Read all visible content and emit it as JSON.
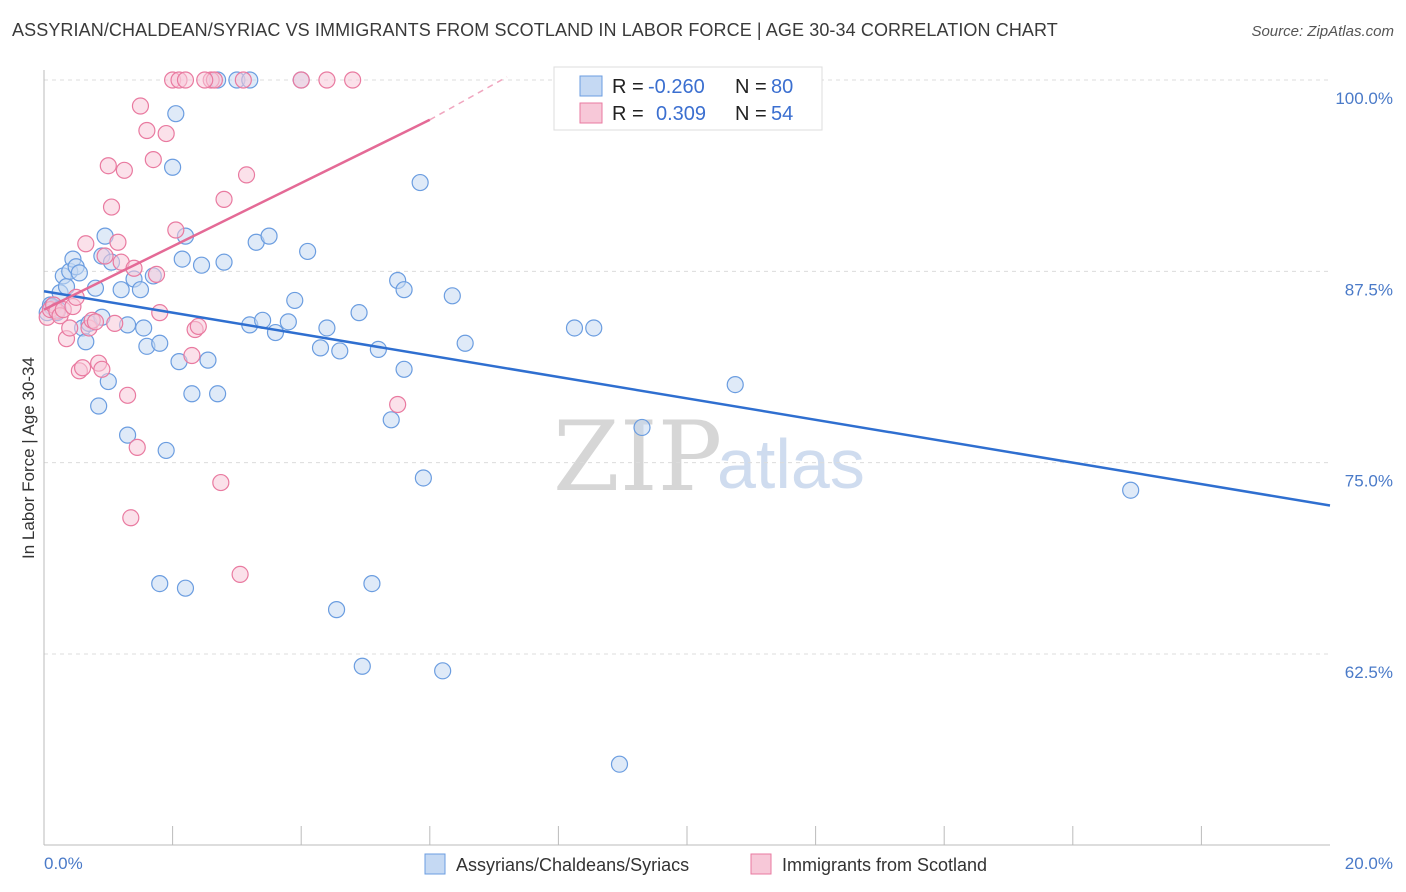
{
  "header": {
    "title": "ASSYRIAN/CHALDEAN/SYRIAC VS IMMIGRANTS FROM SCOTLAND IN LABOR FORCE | AGE 30-34 CORRELATION CHART",
    "source": "Source: ZipAtlas.com"
  },
  "watermark": {
    "zip": "ZIP",
    "atlas": "atlas"
  },
  "chart_data": {
    "type": "scatter",
    "xlim": [
      0,
      20
    ],
    "ylim": [
      50,
      100
    ],
    "y_ticks": [
      {
        "value": 100,
        "label": "100.0%"
      },
      {
        "value": 87.5,
        "label": "87.5%"
      },
      {
        "value": 75,
        "label": "75.0%"
      },
      {
        "value": 62.5,
        "label": "62.5%"
      }
    ],
    "x_ticks": [
      {
        "value": 0,
        "label": "0.0%"
      },
      {
        "value": 20,
        "label": "20.0%"
      }
    ],
    "x_minor_ticks": [
      2,
      4,
      6,
      8,
      10,
      12,
      14,
      16,
      18
    ],
    "ylabel": "In Labor Force | Age 30-34",
    "xlabel": "",
    "grid": true,
    "legend_stats": [
      {
        "r_label": "R =",
        "r_value": "-0.260",
        "n_label": "N =",
        "n_value": "80"
      },
      {
        "r_label": "R =",
        "r_value": "0.309",
        "n_label": "N =",
        "n_value": "54"
      }
    ],
    "series": [
      {
        "name": "Assyrians/Chaldeans/Syriacs",
        "color": "#6b9de0",
        "fill": "#c5d9f3",
        "trend": {
          "x0": 0,
          "y0": 86.2,
          "x1": 20,
          "y1": 72.2
        },
        "points": [
          [
            0.1,
            85.3
          ],
          [
            0.15,
            85.1
          ],
          [
            0.2,
            84.8
          ],
          [
            0.25,
            86.1
          ],
          [
            0.3,
            87.2
          ],
          [
            0.35,
            86.5
          ],
          [
            0.4,
            87.5
          ],
          [
            0.45,
            88.3
          ],
          [
            0.5,
            87.8
          ],
          [
            0.55,
            87.4
          ],
          [
            0.6,
            83.8
          ],
          [
            0.65,
            82.9
          ],
          [
            0.7,
            84.1
          ],
          [
            0.8,
            86.4
          ],
          [
            0.85,
            78.7
          ],
          [
            0.9,
            88.5
          ],
          [
            0.95,
            89.8
          ],
          [
            1.0,
            80.3
          ],
          [
            1.05,
            88.1
          ],
          [
            1.3,
            84.0
          ],
          [
            1.4,
            87.0
          ],
          [
            1.5,
            86.3
          ],
          [
            1.55,
            83.8
          ],
          [
            1.6,
            82.6
          ],
          [
            1.7,
            87.2
          ],
          [
            1.8,
            82.8
          ],
          [
            1.9,
            75.8
          ],
          [
            2.0,
            94.3
          ],
          [
            2.05,
            97.8
          ],
          [
            2.1,
            81.6
          ],
          [
            2.2,
            89.8
          ],
          [
            2.3,
            79.5
          ],
          [
            2.45,
            87.9
          ],
          [
            2.55,
            81.7
          ],
          [
            2.7,
            79.5
          ],
          [
            2.8,
            88.1
          ],
          [
            2.7,
            100.0
          ],
          [
            3.0,
            100.0
          ],
          [
            3.2,
            100.0
          ],
          [
            3.2,
            84.0
          ],
          [
            3.3,
            89.4
          ],
          [
            3.4,
            84.3
          ],
          [
            3.5,
            89.8
          ],
          [
            3.6,
            83.5
          ],
          [
            3.8,
            84.2
          ],
          [
            3.9,
            85.6
          ],
          [
            4.0,
            100.0
          ],
          [
            4.1,
            88.8
          ],
          [
            4.3,
            82.5
          ],
          [
            4.4,
            83.8
          ],
          [
            4.6,
            82.3
          ],
          [
            4.9,
            84.8
          ],
          [
            5.2,
            82.4
          ],
          [
            5.4,
            77.8
          ],
          [
            5.5,
            86.9
          ],
          [
            5.6,
            86.3
          ],
          [
            5.6,
            81.1
          ],
          [
            5.85,
            93.3
          ],
          [
            5.9,
            74.0
          ],
          [
            6.35,
            85.9
          ],
          [
            6.55,
            82.8
          ],
          [
            8.25,
            83.8
          ],
          [
            8.55,
            83.8
          ],
          [
            9.3,
            77.3
          ],
          [
            10.75,
            80.1
          ],
          [
            1.3,
            76.8
          ],
          [
            1.8,
            67.1
          ],
          [
            2.2,
            66.8
          ],
          [
            4.55,
            65.4
          ],
          [
            5.1,
            67.1
          ],
          [
            4.95,
            61.7
          ],
          [
            6.2,
            61.4
          ],
          [
            8.95,
            55.3
          ],
          [
            16.9,
            73.2
          ],
          [
            2.15,
            88.3
          ],
          [
            0.05,
            84.8
          ],
          [
            0.12,
            85.2
          ],
          [
            0.22,
            85.0
          ],
          [
            1.2,
            86.3
          ],
          [
            0.9,
            84.5
          ]
        ]
      },
      {
        "name": "Immigrants from Scotland",
        "color": "#e97aa0",
        "fill": "#f7c8d8",
        "trend": {
          "x0": 0,
          "y0": 85.0,
          "x1": 6.0,
          "y1": 97.4
        },
        "trend_dashed": {
          "x0": 6.0,
          "y0": 97.4,
          "x1": 7.2,
          "y1": 100.2
        },
        "points": [
          [
            0.05,
            84.5
          ],
          [
            0.1,
            85.0
          ],
          [
            0.15,
            85.3
          ],
          [
            0.2,
            84.9
          ],
          [
            0.25,
            84.6
          ],
          [
            0.3,
            85.0
          ],
          [
            0.35,
            83.1
          ],
          [
            0.4,
            83.8
          ],
          [
            0.45,
            85.2
          ],
          [
            0.5,
            85.8
          ],
          [
            0.55,
            81.0
          ],
          [
            0.6,
            81.2
          ],
          [
            0.65,
            89.3
          ],
          [
            0.7,
            83.8
          ],
          [
            0.75,
            84.3
          ],
          [
            0.8,
            84.2
          ],
          [
            0.85,
            81.5
          ],
          [
            0.9,
            81.1
          ],
          [
            0.95,
            88.5
          ],
          [
            1.0,
            94.4
          ],
          [
            1.05,
            91.7
          ],
          [
            1.1,
            84.1
          ],
          [
            1.15,
            89.4
          ],
          [
            1.2,
            88.1
          ],
          [
            1.25,
            94.1
          ],
          [
            1.3,
            79.4
          ],
          [
            1.35,
            71.4
          ],
          [
            1.4,
            87.7
          ],
          [
            1.45,
            76.0
          ],
          [
            1.5,
            98.3
          ],
          [
            1.6,
            96.7
          ],
          [
            1.7,
            94.8
          ],
          [
            1.75,
            87.3
          ],
          [
            1.8,
            84.8
          ],
          [
            1.9,
            96.5
          ],
          [
            2.0,
            100.0
          ],
          [
            2.05,
            90.2
          ],
          [
            2.1,
            100.0
          ],
          [
            2.2,
            100.0
          ],
          [
            2.3,
            82.0
          ],
          [
            2.35,
            83.7
          ],
          [
            2.4,
            83.9
          ],
          [
            2.6,
            100.0
          ],
          [
            2.65,
            100.0
          ],
          [
            2.75,
            73.7
          ],
          [
            2.8,
            92.2
          ],
          [
            3.1,
            100.0
          ],
          [
            3.05,
            67.7
          ],
          [
            3.15,
            93.8
          ],
          [
            4.0,
            100.0
          ],
          [
            4.4,
            100.0
          ],
          [
            4.8,
            100.0
          ],
          [
            5.5,
            78.8
          ],
          [
            2.5,
            100.0
          ]
        ]
      }
    ]
  }
}
